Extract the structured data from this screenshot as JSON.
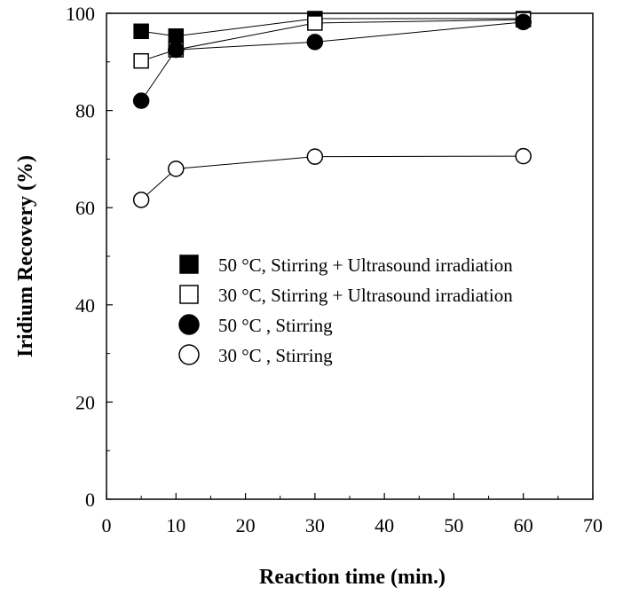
{
  "chart_data": {
    "type": "scatter",
    "title": "",
    "xlabel": "Reaction time (min.)",
    "ylabel": "Iridium Recovery (%)",
    "xlim": [
      0,
      70
    ],
    "ylim": [
      0,
      100
    ],
    "xticks": [
      0,
      10,
      20,
      30,
      40,
      50,
      60,
      70
    ],
    "yticks": [
      0,
      20,
      40,
      60,
      80,
      100
    ],
    "grid": false,
    "legend_position": "center-left",
    "series": [
      {
        "name": "50 °C, Stirring + Ultrasound irradiation",
        "marker": "square-filled",
        "x": [
          5,
          10,
          30,
          60
        ],
        "y": [
          96.3,
          95.3,
          98.9,
          98.9
        ]
      },
      {
        "name": "30 °C, Stirring + Ultrasound irradiation",
        "marker": "square-open",
        "x": [
          5,
          10,
          30,
          60
        ],
        "y": [
          90.2,
          92.5,
          98.0,
          98.7
        ]
      },
      {
        "name": "50 °C , Stirring",
        "marker": "circle-filled",
        "x": [
          5,
          10,
          30,
          60
        ],
        "y": [
          82.0,
          92.5,
          94.1,
          98.2
        ]
      },
      {
        "name": "30 °C , Stirring",
        "marker": "circle-open",
        "x": [
          5,
          10,
          30,
          60
        ],
        "y": [
          61.6,
          68.0,
          70.5,
          70.6
        ]
      }
    ]
  }
}
